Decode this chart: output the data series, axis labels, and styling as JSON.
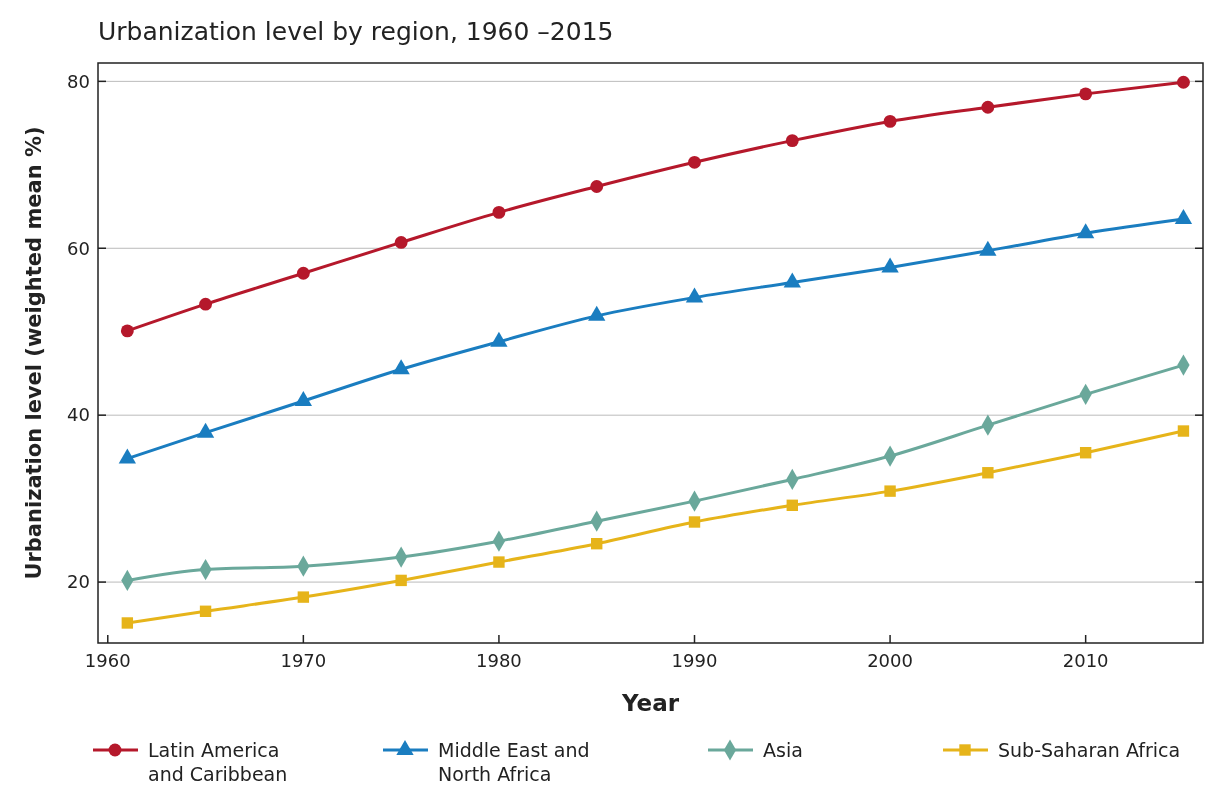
{
  "chart_data": {
    "type": "line",
    "title": "Urbanization level by region, 1960 –2015",
    "xlabel": "Year",
    "ylabel": "Urbanization level (weighted mean %)",
    "x": [
      1961,
      1965,
      1970,
      1975,
      1980,
      1985,
      1990,
      1995,
      2000,
      2005,
      2010,
      2015
    ],
    "xlim": [
      1959.5,
      2016
    ],
    "xticks": [
      1960,
      1970,
      1980,
      1990,
      2000,
      2010
    ],
    "ylim": [
      12.7,
      82.2
    ],
    "yticks": [
      20,
      40,
      60,
      80
    ],
    "grid": "y",
    "legend": "bottom",
    "series": [
      {
        "name": "Latin America and Caribbean",
        "color": "#b5182b",
        "marker": "circle",
        "values": [
          50.1,
          53.3,
          57.0,
          60.7,
          64.3,
          67.4,
          70.3,
          72.9,
          75.2,
          76.9,
          78.5,
          79.9
        ]
      },
      {
        "name": "Middle East and North Africa",
        "color": "#1a7dc0",
        "marker": "triangle",
        "values": [
          34.8,
          37.9,
          41.7,
          45.5,
          48.8,
          51.9,
          54.1,
          55.9,
          57.7,
          59.7,
          61.8,
          63.5
        ]
      },
      {
        "name": "Asia",
        "color": "#6aa89b",
        "marker": "diamond",
        "values": [
          20.2,
          21.5,
          21.9,
          23.0,
          24.9,
          27.3,
          29.7,
          32.3,
          35.1,
          38.8,
          42.5,
          46.0
        ]
      },
      {
        "name": "Sub-Saharan Africa",
        "color": "#e6b41a",
        "marker": "square",
        "values": [
          15.1,
          16.5,
          18.2,
          20.2,
          22.4,
          24.6,
          27.2,
          29.2,
          30.9,
          33.1,
          35.5,
          38.1
        ]
      }
    ]
  }
}
